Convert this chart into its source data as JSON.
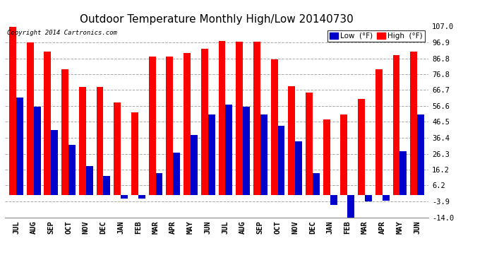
{
  "title": "Outdoor Temperature Monthly High/Low 20140730",
  "copyright": "Copyright 2014 Cartronics.com",
  "legend_low": "Low  (°F)",
  "legend_high": "High  (°F)",
  "months": [
    "JUL",
    "AUG",
    "SEP",
    "OCT",
    "NOV",
    "DEC",
    "JAN",
    "FEB",
    "MAR",
    "APR",
    "MAY",
    "JUN",
    "JUL",
    "AUG",
    "SEP",
    "OCT",
    "NOV",
    "DEC",
    "JAN",
    "FEB",
    "MAR",
    "APR",
    "MAY",
    "JUN"
  ],
  "high_values": [
    107.0,
    96.9,
    91.0,
    80.0,
    68.5,
    68.5,
    59.0,
    52.5,
    88.0,
    88.0,
    90.0,
    93.0,
    98.0,
    97.5,
    97.5,
    86.0,
    69.0,
    65.0,
    48.0,
    51.0,
    61.0,
    80.0,
    89.0,
    91.0
  ],
  "low_values": [
    62.0,
    56.0,
    41.5,
    32.0,
    18.5,
    12.0,
    -2.0,
    -2.0,
    14.0,
    27.0,
    38.0,
    51.0,
    57.5,
    56.0,
    51.0,
    44.0,
    34.0,
    14.0,
    -6.0,
    -14.0,
    -3.9,
    -3.5,
    28.0,
    51.0
  ],
  "ylim": [
    -14.0,
    107.0
  ],
  "yticks": [
    -14.0,
    -3.9,
    6.2,
    16.2,
    26.3,
    36.4,
    46.5,
    56.6,
    66.7,
    76.8,
    86.8,
    96.9,
    107.0
  ],
  "bar_width": 0.4,
  "high_color": "#ff0000",
  "low_color": "#0000cc",
  "bg_color": "#ffffff",
  "grid_color": "#aaaaaa",
  "title_fontsize": 11,
  "tick_fontsize": 7.5,
  "legend_fontsize": 7.5
}
